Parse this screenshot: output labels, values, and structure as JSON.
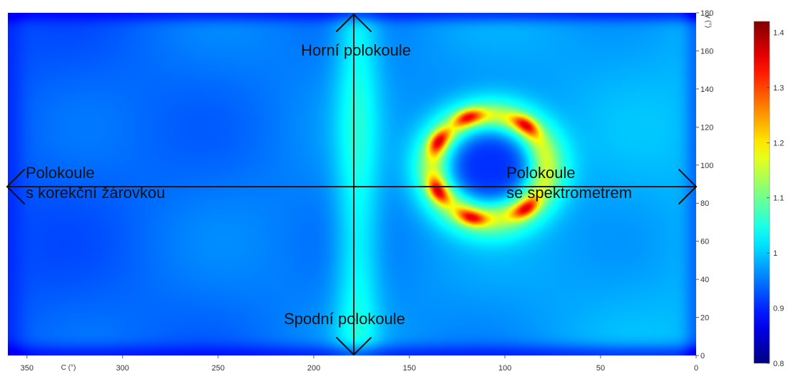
{
  "chart_data": {
    "type": "heatmap",
    "title": "",
    "xlabel": "C (°)",
    "ylabel": "γ (°)",
    "xlim": [
      360,
      0
    ],
    "ylim": [
      0,
      180
    ],
    "x_reversed": true,
    "x_ticks": [
      350,
      300,
      250,
      200,
      150,
      100,
      50,
      0
    ],
    "x_tick_labels": [
      "350",
      "300",
      "250",
      "200",
      "150",
      "100",
      "50",
      "0"
    ],
    "y_ticks": [
      0,
      20,
      40,
      60,
      80,
      100,
      120,
      140,
      160,
      180
    ],
    "y_tick_labels": [
      "0",
      "20",
      "40",
      "60",
      "80",
      "100",
      "120",
      "140",
      "160",
      "180"
    ],
    "y_axis_position": "right",
    "colorbar": {
      "min": 0.8,
      "max": 1.42,
      "ticks": [
        0.8,
        0.9,
        1,
        1.1,
        1.2,
        1.3,
        1.4
      ],
      "tick_labels": [
        "0.8",
        "0.9",
        "1",
        "1.1",
        "1.2",
        "1.3",
        "1.4"
      ],
      "colormap": "jet"
    },
    "field": {
      "background_left": 0.93,
      "background_right": 0.99,
      "vertical_band": {
        "c_center": 177,
        "c_width": 12,
        "value": 1.04
      },
      "ring": {
        "c_center": 108,
        "gamma_center": 99,
        "radius": 30,
        "width": 5,
        "value": 1.38
      },
      "ring_hotspots": [
        {
          "c": 136,
          "gamma": 113,
          "value": 1.38
        },
        {
          "c": 136,
          "gamma": 86,
          "value": 1.38
        },
        {
          "c": 118,
          "gamma": 71,
          "value": 1.36
        },
        {
          "c": 120,
          "gamma": 127,
          "value": 1.34
        },
        {
          "c": 88,
          "gamma": 122,
          "value": 1.34
        },
        {
          "c": 88,
          "gamma": 76,
          "value": 1.36
        }
      ],
      "ring_inner_value": 0.9,
      "edge_low_value": 0.86
    },
    "annotations": [
      {
        "text": "Horní polokoule"
      },
      {
        "text": "Spodní polokoule"
      },
      {
        "text": "Polokoule\ns korekční žárovkou"
      },
      {
        "text": "Polokoule\nse spektrometrem"
      }
    ]
  }
}
